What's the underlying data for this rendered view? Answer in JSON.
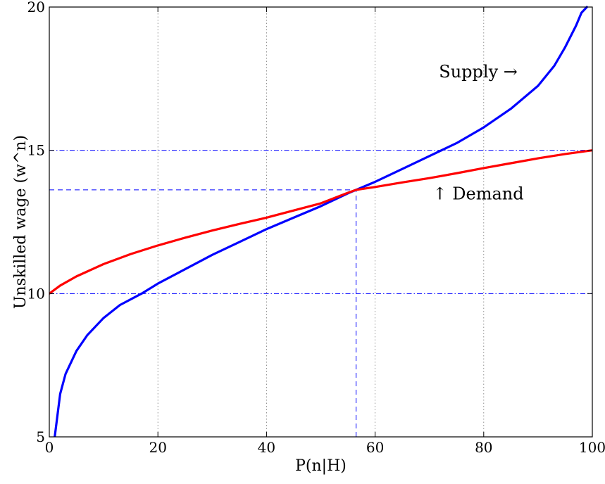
{
  "chart_data": {
    "type": "line",
    "xlabel": "P(n|H)",
    "ylabel": "Unskilled wage (w^n)",
    "xlim": [
      0,
      100
    ],
    "ylim": [
      5,
      20
    ],
    "xticks": [
      0,
      20,
      40,
      60,
      80,
      100
    ],
    "yticks": [
      5,
      10,
      15,
      20
    ],
    "grid": "x-only dotted",
    "series": [
      {
        "name": "Supply",
        "color": "#0000ff",
        "x": [
          1,
          2,
          3,
          5,
          7,
          10,
          13,
          17,
          20,
          25,
          30,
          35,
          40,
          45,
          50,
          55,
          56.5,
          60,
          65,
          70,
          75,
          80,
          85,
          90,
          93,
          95,
          97,
          98,
          99
        ],
        "y": [
          5,
          6.5,
          7.2,
          8.0,
          8.55,
          9.15,
          9.6,
          10.0,
          10.35,
          10.85,
          11.35,
          11.8,
          12.25,
          12.65,
          13.05,
          13.5,
          13.62,
          13.9,
          14.35,
          14.8,
          15.25,
          15.8,
          16.45,
          17.25,
          17.95,
          18.6,
          19.35,
          19.8,
          20
        ]
      },
      {
        "name": "Demand",
        "color": "#ff0000",
        "x": [
          0,
          2,
          5,
          10,
          15,
          20,
          25,
          30,
          35,
          40,
          45,
          50,
          55,
          56.5,
          60,
          65,
          70,
          75,
          80,
          85,
          90,
          95,
          100
        ],
        "y": [
          10,
          10.28,
          10.6,
          11.03,
          11.38,
          11.68,
          11.95,
          12.2,
          12.43,
          12.65,
          12.9,
          13.15,
          13.52,
          13.62,
          13.72,
          13.88,
          14.03,
          14.2,
          14.38,
          14.55,
          14.72,
          14.87,
          15.0
        ]
      }
    ],
    "reference_lines": [
      {
        "kind": "horizontal",
        "value": 15,
        "style": "dashdot",
        "color": "#0000ff"
      },
      {
        "kind": "horizontal",
        "value": 10,
        "style": "dashdot",
        "color": "#0000ff"
      },
      {
        "kind": "horizontal",
        "value": 13.62,
        "from_x": 0,
        "to_x": 56.5,
        "style": "dashed",
        "color": "#0000ff"
      },
      {
        "kind": "vertical",
        "value": 56.5,
        "from_y": 5,
        "to_y": 13.62,
        "style": "dashed",
        "color": "#0000ff"
      }
    ],
    "annotations": [
      {
        "text": "Supply →",
        "x": 79,
        "y": 17.7
      },
      {
        "text": "↑ Demand",
        "x": 79,
        "y": 13.45
      }
    ]
  }
}
